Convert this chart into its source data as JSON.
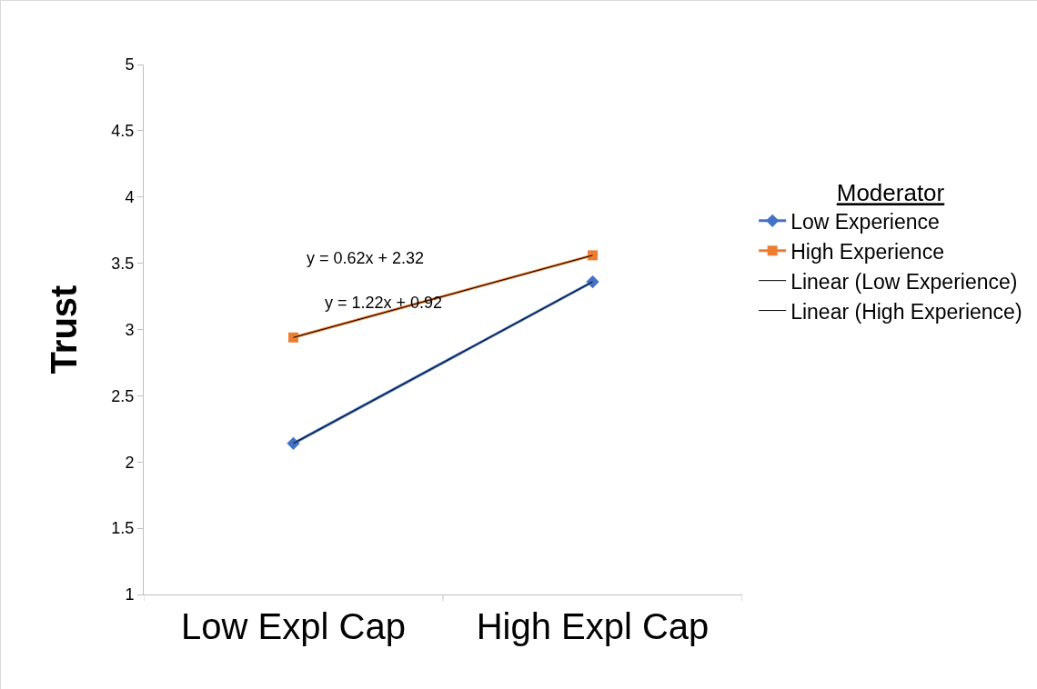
{
  "chart_data": {
    "type": "line",
    "ylabel": "Trust",
    "legend_title": "Moderator",
    "categories": [
      "Low Expl Cap",
      "High Expl Cap"
    ],
    "series": [
      {
        "name": "Low Experience",
        "color": "#4472c4",
        "values": [
          2.14,
          3.36
        ],
        "marker": "diamond"
      },
      {
        "name": "High Experience",
        "color": "#ed7d31",
        "values": [
          2.94,
          3.56
        ],
        "marker": "square"
      },
      {
        "name": "Linear (Low Experience)",
        "color": "#000000",
        "values": [
          2.14,
          3.36
        ],
        "marker": "none"
      },
      {
        "name": "Linear (High Experience)",
        "color": "#000000",
        "values": [
          2.94,
          3.56
        ],
        "marker": "none"
      }
    ],
    "annotations": [
      "y = 0.62x + 2.32",
      "y = 1.22x + 0.92"
    ],
    "ylim": [
      1,
      5
    ],
    "yticks": [
      1,
      1.5,
      2,
      2.5,
      3,
      3.5,
      4,
      4.5,
      5
    ],
    "grid": false,
    "legend": "right",
    "line_style": "solid"
  }
}
